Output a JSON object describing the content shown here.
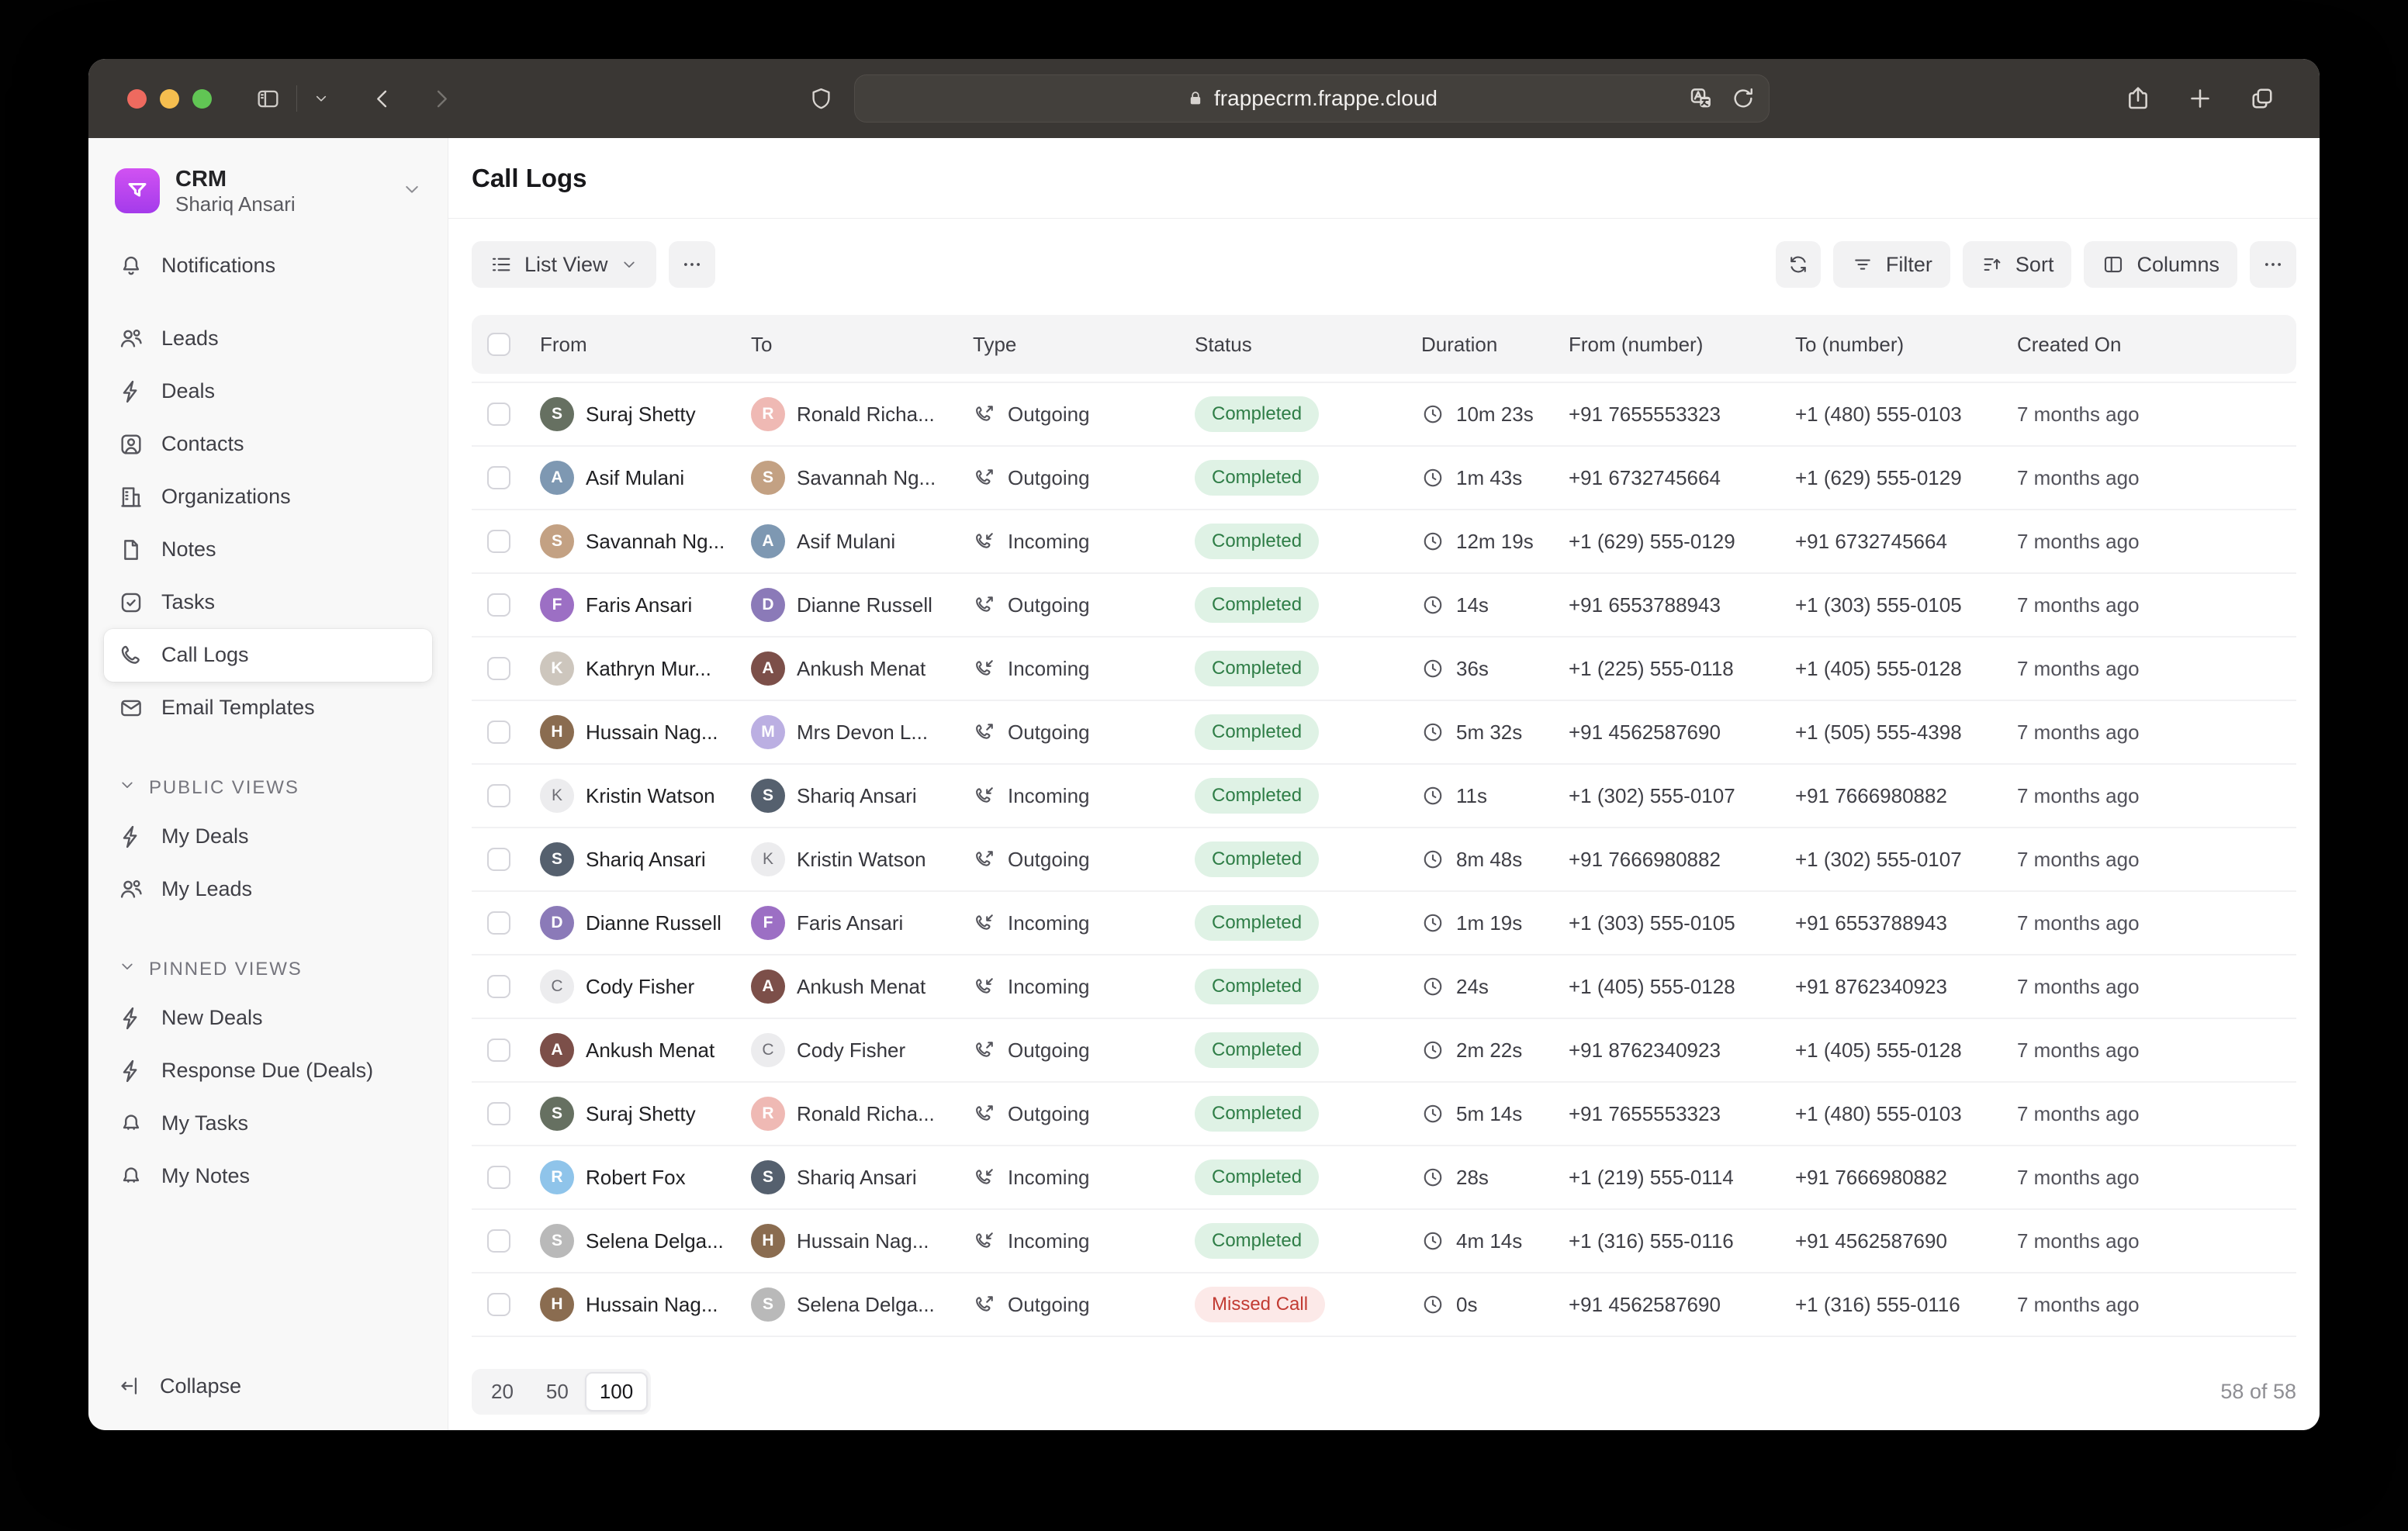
{
  "browser": {
    "url": "frappecrm.frappe.cloud",
    "traffic_colors": {
      "close": "#ee6a5f",
      "minimize": "#f5be4f",
      "zoom": "#61c554"
    }
  },
  "sidebar": {
    "app": {
      "name": "CRM",
      "user": "Shariq Ansari"
    },
    "nav": [
      {
        "label": "Notifications",
        "icon": "bell",
        "active": false
      },
      {
        "label": "Leads",
        "icon": "users",
        "active": false
      },
      {
        "label": "Deals",
        "icon": "zap",
        "active": false
      },
      {
        "label": "Contacts",
        "icon": "user-square",
        "active": false
      },
      {
        "label": "Organizations",
        "icon": "building",
        "active": false
      },
      {
        "label": "Notes",
        "icon": "file",
        "active": false
      },
      {
        "label": "Tasks",
        "icon": "check-square",
        "active": false
      },
      {
        "label": "Call Logs",
        "icon": "phone",
        "active": true
      },
      {
        "label": "Email Templates",
        "icon": "mail",
        "active": false
      }
    ],
    "sections": [
      {
        "title": "PUBLIC VIEWS",
        "items": [
          {
            "label": "My Deals",
            "icon": "zap"
          },
          {
            "label": "My Leads",
            "icon": "users"
          }
        ]
      },
      {
        "title": "PINNED VIEWS",
        "items": [
          {
            "label": "New Deals",
            "icon": "zap"
          },
          {
            "label": "Response Due (Deals)",
            "icon": "zap"
          },
          {
            "label": "My Tasks",
            "icon": "bell-plain"
          },
          {
            "label": "My Notes",
            "icon": "bell-plain"
          }
        ]
      }
    ],
    "collapse_label": "Collapse"
  },
  "page": {
    "title": "Call Logs"
  },
  "toolbar": {
    "view_label": "List View",
    "filter_label": "Filter",
    "sort_label": "Sort",
    "columns_label": "Columns"
  },
  "table": {
    "headers": [
      "From",
      "To",
      "Type",
      "Status",
      "Duration",
      "From (number)",
      "To (number)",
      "Created On"
    ],
    "rows": [
      {
        "from": {
          "name": "Suraj Shetty",
          "initial": "S",
          "color": "#667061",
          "letter": false
        },
        "to": {
          "name": "Ronald Richa...",
          "initial": "R",
          "color": "#efb9b4",
          "letter": false
        },
        "type": "Outgoing",
        "status": "Completed",
        "duration": "10m 23s",
        "from_number": "+91 7655553323",
        "to_number": "+1 (480) 555-0103",
        "created": "7 months ago"
      },
      {
        "from": {
          "name": "Asif Mulani",
          "initial": "A",
          "color": "#7e98b2",
          "letter": false
        },
        "to": {
          "name": "Savannah Ng...",
          "initial": "S",
          "color": "#c3a183",
          "letter": false
        },
        "type": "Outgoing",
        "status": "Completed",
        "duration": "1m 43s",
        "from_number": "+91 6732745664",
        "to_number": "+1 (629) 555-0129",
        "created": "7 months ago"
      },
      {
        "from": {
          "name": "Savannah Ng...",
          "initial": "S",
          "color": "#c3a183",
          "letter": false
        },
        "to": {
          "name": "Asif Mulani",
          "initial": "A",
          "color": "#7e98b2",
          "letter": false
        },
        "type": "Incoming",
        "status": "Completed",
        "duration": "12m 19s",
        "from_number": "+1 (629) 555-0129",
        "to_number": "+91 6732745664",
        "created": "7 months ago"
      },
      {
        "from": {
          "name": "Faris Ansari",
          "initial": "F",
          "color": "#9c6fc4",
          "letter": false
        },
        "to": {
          "name": "Dianne Russell",
          "initial": "D",
          "color": "#8b7ab8",
          "letter": false
        },
        "type": "Outgoing",
        "status": "Completed",
        "duration": "14s",
        "from_number": "+91 6553788943",
        "to_number": "+1 (303) 555-0105",
        "created": "7 months ago"
      },
      {
        "from": {
          "name": "Kathryn Mur...",
          "initial": "K",
          "color": "#cdc6bd",
          "letter": false
        },
        "to": {
          "name": "Ankush Menat",
          "initial": "A",
          "color": "#7c4f49",
          "letter": false
        },
        "type": "Incoming",
        "status": "Completed",
        "duration": "36s",
        "from_number": "+1 (225) 555-0118",
        "to_number": "+1 (405) 555-0128",
        "created": "7 months ago"
      },
      {
        "from": {
          "name": "Hussain Nag...",
          "initial": "H",
          "color": "#8a6c50",
          "letter": false
        },
        "to": {
          "name": "Mrs Devon L...",
          "initial": "M",
          "color": "#bbafe2",
          "letter": false
        },
        "type": "Outgoing",
        "status": "Completed",
        "duration": "5m 32s",
        "from_number": "+91 4562587690",
        "to_number": "+1 (505) 555-4398",
        "created": "7 months ago"
      },
      {
        "from": {
          "name": "Kristin Watson",
          "initial": "K",
          "color": "",
          "letter": true
        },
        "to": {
          "name": "Shariq Ansari",
          "initial": "S",
          "color": "#55606e",
          "letter": false
        },
        "type": "Incoming",
        "status": "Completed",
        "duration": "11s",
        "from_number": "+1 (302) 555-0107",
        "to_number": "+91 7666980882",
        "created": "7 months ago"
      },
      {
        "from": {
          "name": "Shariq Ansari",
          "initial": "S",
          "color": "#55606e",
          "letter": false
        },
        "to": {
          "name": "Kristin Watson",
          "initial": "K",
          "color": "",
          "letter": true
        },
        "type": "Outgoing",
        "status": "Completed",
        "duration": "8m 48s",
        "from_number": "+91 7666980882",
        "to_number": "+1 (302) 555-0107",
        "created": "7 months ago"
      },
      {
        "from": {
          "name": "Dianne Russell",
          "initial": "D",
          "color": "#8b7ab8",
          "letter": false
        },
        "to": {
          "name": "Faris Ansari",
          "initial": "F",
          "color": "#9c6fc4",
          "letter": false
        },
        "type": "Incoming",
        "status": "Completed",
        "duration": "1m 19s",
        "from_number": "+1 (303) 555-0105",
        "to_number": "+91 6553788943",
        "created": "7 months ago"
      },
      {
        "from": {
          "name": "Cody Fisher",
          "initial": "C",
          "color": "",
          "letter": true
        },
        "to": {
          "name": "Ankush Menat",
          "initial": "A",
          "color": "#7c4f49",
          "letter": false
        },
        "type": "Incoming",
        "status": "Completed",
        "duration": "24s",
        "from_number": "+1 (405) 555-0128",
        "to_number": "+91 8762340923",
        "created": "7 months ago"
      },
      {
        "from": {
          "name": "Ankush Menat",
          "initial": "A",
          "color": "#7c4f49",
          "letter": false
        },
        "to": {
          "name": "Cody Fisher",
          "initial": "C",
          "color": "",
          "letter": true
        },
        "type": "Outgoing",
        "status": "Completed",
        "duration": "2m 22s",
        "from_number": "+91 8762340923",
        "to_number": "+1 (405) 555-0128",
        "created": "7 months ago"
      },
      {
        "from": {
          "name": "Suraj Shetty",
          "initial": "S",
          "color": "#667061",
          "letter": false
        },
        "to": {
          "name": "Ronald Richa...",
          "initial": "R",
          "color": "#efb9b4",
          "letter": false
        },
        "type": "Outgoing",
        "status": "Completed",
        "duration": "5m 14s",
        "from_number": "+91 7655553323",
        "to_number": "+1 (480) 555-0103",
        "created": "7 months ago"
      },
      {
        "from": {
          "name": "Robert Fox",
          "initial": "R",
          "color": "#8fc4ea",
          "letter": false
        },
        "to": {
          "name": "Shariq Ansari",
          "initial": "S",
          "color": "#55606e",
          "letter": false
        },
        "type": "Incoming",
        "status": "Completed",
        "duration": "28s",
        "from_number": "+1 (219) 555-0114",
        "to_number": "+91 7666980882",
        "created": "7 months ago"
      },
      {
        "from": {
          "name": "Selena Delga...",
          "initial": "S",
          "color": "#b9b9b9",
          "letter": false
        },
        "to": {
          "name": "Hussain Nag...",
          "initial": "H",
          "color": "#8a6c50",
          "letter": false
        },
        "type": "Incoming",
        "status": "Completed",
        "duration": "4m 14s",
        "from_number": "+1 (316) 555-0116",
        "to_number": "+91 4562587690",
        "created": "7 months ago"
      },
      {
        "from": {
          "name": "Hussain Nag...",
          "initial": "H",
          "color": "#8a6c50",
          "letter": false
        },
        "to": {
          "name": "Selena Delga...",
          "initial": "S",
          "color": "#b9b9b9",
          "letter": false
        },
        "type": "Outgoing",
        "status": "Missed Call",
        "duration": "0s",
        "from_number": "+91 4562587690",
        "to_number": "+1 (316) 555-0116",
        "created": "7 months ago"
      }
    ]
  },
  "footer": {
    "page_sizes": [
      "20",
      "50",
      "100"
    ],
    "active_size": "100",
    "count": "58 of 58"
  },
  "colors": {
    "accent_purple": "#b944ee",
    "status_completed_bg": "#dff2e5",
    "status_completed_text": "#2e7d46",
    "status_missed_bg": "#fce9e8",
    "status_missed_text": "#c23b33",
    "titlebar_bg": "#3a3734",
    "sidebar_bg": "#f8f8f8",
    "table_header_bg": "#f4f4f5"
  }
}
